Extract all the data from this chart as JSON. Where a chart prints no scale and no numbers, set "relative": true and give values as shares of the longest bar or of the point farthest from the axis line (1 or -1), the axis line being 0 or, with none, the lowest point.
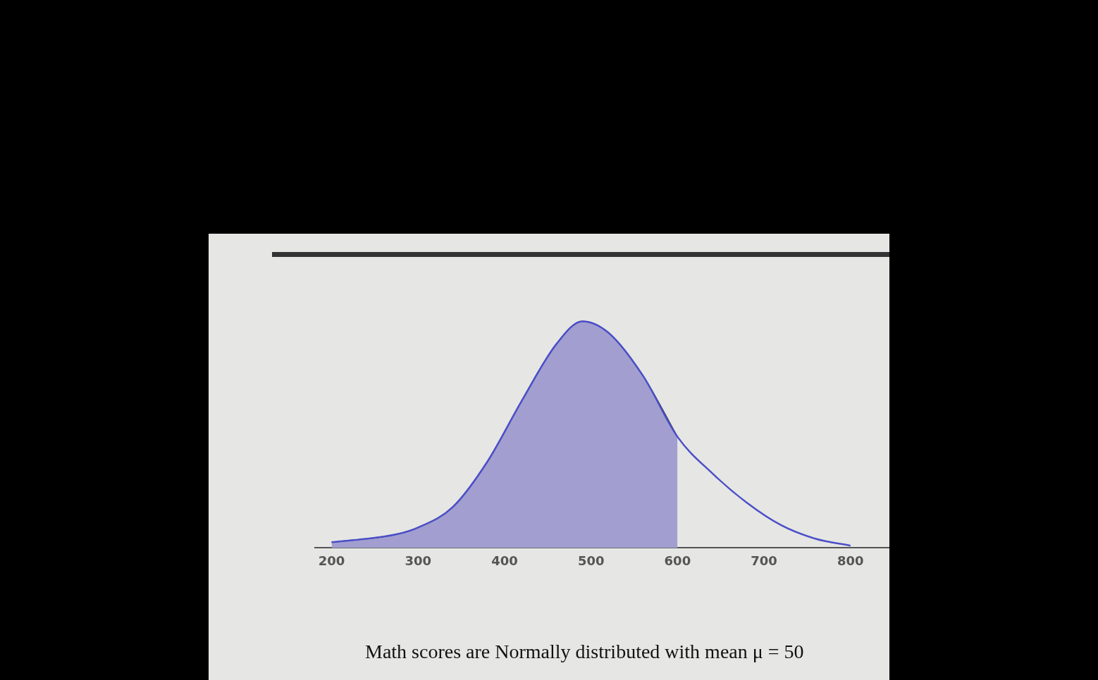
{
  "chart_data": {
    "type": "area",
    "relative": true,
    "xlim": [
      180,
      845
    ],
    "xticks": [
      200,
      300,
      400,
      500,
      600,
      700,
      800
    ],
    "series": [
      {
        "color": "#a29fd0",
        "x": [
          200,
          275,
          300,
          340,
          380,
          420,
          460,
          490,
          520,
          560,
          600
        ],
        "values": [
          0.025,
          0.06,
          0.09,
          0.18,
          0.38,
          0.65,
          0.9,
          1.0,
          0.95,
          0.76,
          0.49
        ]
      },
      {
        "type": "line",
        "color": "#4b4fc8",
        "x": [
          200,
          275,
          300,
          340,
          380,
          420,
          460,
          490,
          520,
          560,
          600,
          640,
          680,
          720,
          760,
          800
        ],
        "values": [
          0.025,
          0.06,
          0.09,
          0.18,
          0.38,
          0.65,
          0.9,
          1.0,
          0.95,
          0.76,
          0.49,
          0.33,
          0.2,
          0.1,
          0.04,
          0.01
        ]
      }
    ],
    "grid": false,
    "legend": false,
    "marker": "none",
    "annotations": [
      "Math scores are Normally distributed with mean μ = 50"
    ]
  }
}
